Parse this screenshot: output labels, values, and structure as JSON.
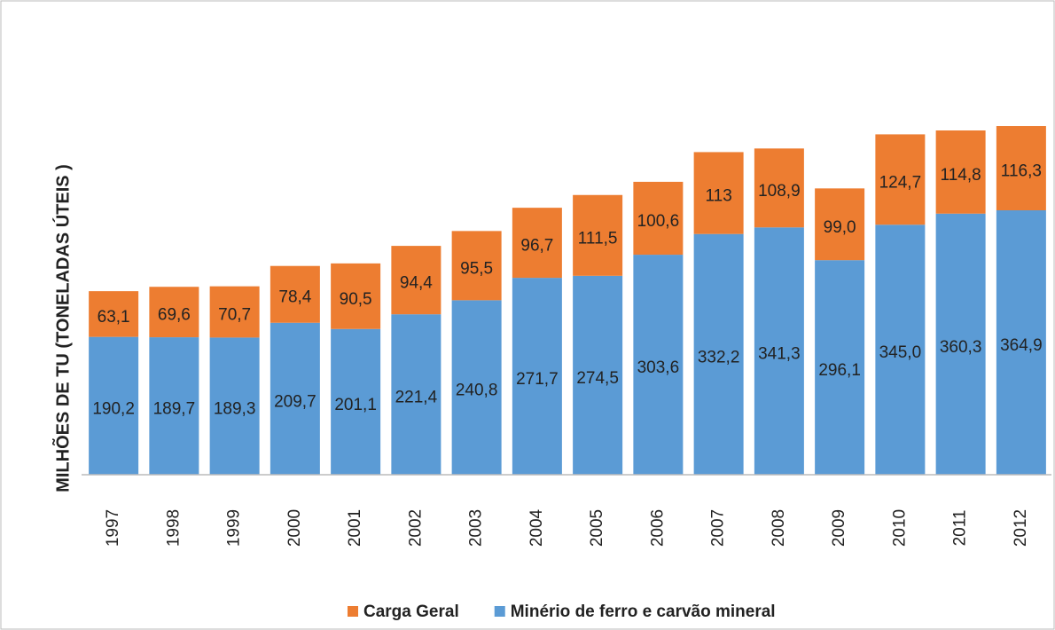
{
  "chart_data": {
    "type": "stacked_bar",
    "y_label": "MILHÕES DE TU (TONELADAS ÚTEIS )",
    "categories": [
      "1997",
      "1998",
      "1999",
      "2000",
      "2001",
      "2002",
      "2003",
      "2004",
      "2005",
      "2006",
      "2007",
      "2008",
      "2009",
      "2010",
      "2011",
      "2012"
    ],
    "series": [
      {
        "name": "Minério de ferro e carvão  mineral",
        "color": "#5b9bd5",
        "values": [
          190.2,
          189.7,
          189.3,
          209.7,
          201.1,
          221.4,
          240.8,
          271.7,
          274.5,
          303.6,
          332.2,
          341.3,
          296.1,
          345.0,
          360.3,
          364.9
        ],
        "value_labels": [
          "190,2",
          "189,7",
          "189,3",
          "209,7",
          "201,1",
          "221,4",
          "240,8",
          "271,7",
          "274,5",
          "303,6",
          "332,2",
          "341,3",
          "296,1",
          "345,0",
          "360,3",
          "364,9"
        ]
      },
      {
        "name": "Carga Geral",
        "color": "#ed7d31",
        "values": [
          63.1,
          69.6,
          70.7,
          78.4,
          90.5,
          94.4,
          95.5,
          96.7,
          111.5,
          100.6,
          113,
          108.9,
          99.0,
          124.7,
          114.8,
          116.3
        ],
        "value_labels": [
          "63,1",
          "69,6",
          "70,7",
          "78,4",
          "90,5",
          "94,4",
          "95,5",
          "96,7",
          "111,5",
          "100,6",
          "113",
          "108,9",
          "99,0",
          "124,7",
          "114,8",
          "116,3"
        ]
      }
    ],
    "ylim": [
      0,
      600
    ],
    "legend": "bottom"
  }
}
